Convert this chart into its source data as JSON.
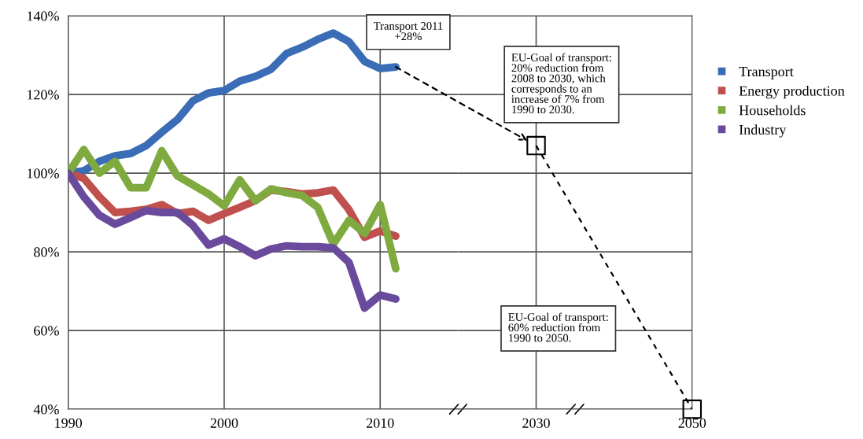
{
  "chart_data": [
    {
      "type": "line",
      "x": [
        1990,
        1991,
        1992,
        1993,
        1994,
        1995,
        1996,
        1997,
        1998,
        1999,
        2000,
        2001,
        2002,
        2003,
        2004,
        2005,
        2006,
        2007,
        2008,
        2009,
        2010,
        2011
      ],
      "series": [
        {
          "name": "Transport",
          "color": "#3a6db5",
          "values": [
            100,
            100.6,
            103,
            104.4,
            105,
            107,
            110.4,
            113.6,
            118.4,
            120.4,
            121,
            123.4,
            124.6,
            126.4,
            130.4,
            132,
            134,
            135.6,
            133.4,
            128.4,
            126.6,
            127
          ]
        },
        {
          "name": "Energy production",
          "color": "#c0504d",
          "values": [
            100,
            98.7,
            94,
            90,
            90.3,
            90.8,
            92,
            89.7,
            90.3,
            88,
            89.7,
            91.3,
            93,
            95.7,
            95.3,
            94.7,
            95,
            95.7,
            90.7,
            83.7,
            85.3,
            84
          ]
        },
        {
          "name": "Households",
          "color": "#7faa3f",
          "values": [
            100,
            106,
            100,
            103,
            96.3,
            96.3,
            105.7,
            99.3,
            97,
            94.7,
            91.7,
            98.3,
            93,
            96,
            95,
            94.3,
            91.3,
            82,
            88,
            84.7,
            92,
            75.7
          ]
        },
        {
          "name": "Industry",
          "color": "#6a4a9c",
          "values": [
            100,
            94,
            89.3,
            87,
            88.7,
            90.5,
            90,
            90,
            86.7,
            81.7,
            83.3,
            81.3,
            79,
            80.7,
            81.5,
            81.3,
            81.3,
            81,
            77.3,
            65.7,
            69,
            68
          ]
        }
      ],
      "xlim": [
        1990,
        2015
      ],
      "xticks": [
        1990,
        2000,
        2010
      ],
      "ylim": [
        40,
        140
      ],
      "yticks": [
        {
          "value": 40,
          "label": "40%"
        },
        {
          "value": 60,
          "label": "60%"
        },
        {
          "value": 80,
          "label": "80%"
        },
        {
          "value": 100,
          "label": "100%"
        },
        {
          "value": 120,
          "label": "120%"
        },
        {
          "value": 140,
          "label": "140%"
        }
      ],
      "grid": true,
      "legend": "right",
      "annotations": [
        "Transport 2011\n+28%"
      ]
    },
    {
      "type": "line",
      "series": [
        {
          "type": "line",
          "line_style": "dashed",
          "color": "#000000",
          "values": [
            107,
            40
          ]
        },
        {
          "type": "scatter",
          "marker": "square",
          "color": "#000000",
          "values": [
            107,
            40
          ]
        }
      ],
      "x": [
        2030,
        2050
      ],
      "xlim": [
        2020,
        2050
      ],
      "xticks": [
        2030,
        2050
      ],
      "ylim": [
        40,
        140
      ],
      "yticks": [
        40,
        60,
        80,
        100,
        120,
        140
      ],
      "tick_labels": "x",
      "grid": true,
      "annotations": [
        "EU-Goal of transport:\n20% reduction from\n2008 to 2030, which\ncorresponds to an\nincrease of 7% from\n1990 to 2030.",
        "EU-Goal of transport:\n60% reduction from\n1990 to 2050."
      ]
    }
  ]
}
